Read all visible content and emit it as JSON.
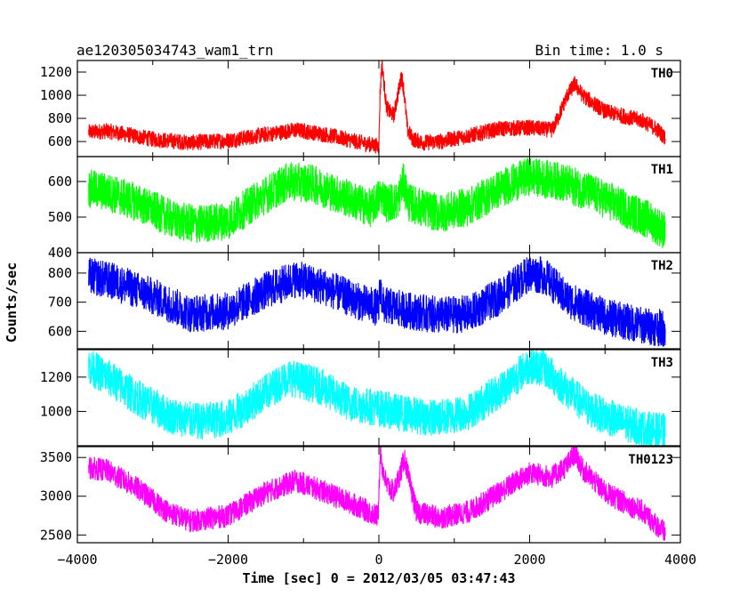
{
  "header": {
    "title": "ae120305034743_wam1_trn",
    "bin_time": "Bin time: 1.0 s"
  },
  "chart_data": {
    "type": "line",
    "xlabel": "Time [sec] 0 = 2012/03/05 03:47:43",
    "ylabel": "Counts/sec",
    "xlim": [
      -4000,
      4000
    ],
    "x_ticks": [
      -4000,
      -2000,
      0,
      2000,
      4000
    ],
    "x_tick_labels": [
      "−4000",
      "−2000",
      "0",
      "2000",
      "4000"
    ],
    "x_data_range": [
      -3850,
      3800
    ],
    "panels": [
      {
        "name": "TH0",
        "color": "#ff0000",
        "ylim": [
          470,
          1300
        ],
        "yticks": [
          600,
          800,
          1000,
          1200
        ],
        "noise": 70,
        "x": [
          -3850,
          -3600,
          -3000,
          -2500,
          -2000,
          -1500,
          -1100,
          -700,
          -300,
          0,
          15,
          40,
          60,
          100,
          150,
          200,
          250,
          300,
          330,
          380,
          450,
          600,
          800,
          1200,
          1600,
          2000,
          2300,
          2400,
          2500,
          2600,
          2700,
          3000,
          3500,
          3700,
          3800
        ],
        "y": [
          680,
          690,
          620,
          590,
          610,
          660,
          700,
          660,
          600,
          560,
          1000,
          1290,
          1150,
          900,
          850,
          830,
          1000,
          1170,
          1050,
          700,
          620,
          590,
          600,
          650,
          710,
          720,
          700,
          840,
          1000,
          1100,
          1000,
          860,
          780,
          700,
          630
        ]
      },
      {
        "name": "TH1",
        "color": "#00ff00",
        "ylim": [
          400,
          670
        ],
        "yticks": [
          400,
          500,
          600
        ],
        "noise": 55,
        "x": [
          -3850,
          -3600,
          -3200,
          -2700,
          -2400,
          -2000,
          -1600,
          -1200,
          -900,
          -500,
          -100,
          0,
          50,
          100,
          250,
          320,
          400,
          800,
          1200,
          1600,
          2000,
          2400,
          2800,
          3200,
          3600,
          3800
        ],
        "y": [
          580,
          570,
          540,
          490,
          480,
          490,
          550,
          600,
          595,
          560,
          525,
          555,
          560,
          540,
          545,
          600,
          540,
          510,
          530,
          580,
          615,
          600,
          570,
          530,
          490,
          460
        ]
      },
      {
        "name": "TH2",
        "color": "#0000ff",
        "ylim": [
          540,
          870
        ],
        "yticks": [
          600,
          700,
          800
        ],
        "noise": 65,
        "x": [
          -3850,
          -3500,
          -3000,
          -2500,
          -2000,
          -1500,
          -1100,
          -700,
          -300,
          0,
          15,
          50,
          400,
          800,
          1200,
          1600,
          2000,
          2200,
          2500,
          3000,
          3500,
          3800
        ],
        "y": [
          790,
          770,
          720,
          660,
          670,
          740,
          780,
          750,
          705,
          680,
          760,
          690,
          670,
          655,
          660,
          720,
          800,
          790,
          710,
          650,
          620,
          610
        ]
      },
      {
        "name": "TH3",
        "color": "#00ffff",
        "ylim": [
          800,
          1360
        ],
        "yticks": [
          1000,
          1200
        ],
        "noise": 110,
        "x": [
          -3850,
          -3600,
          -3200,
          -2800,
          -2400,
          -2000,
          -1600,
          -1200,
          -800,
          -400,
          0,
          400,
          800,
          1200,
          1600,
          2000,
          2200,
          2500,
          2800,
          3200,
          3600,
          3800
        ],
        "y": [
          1260,
          1200,
          1080,
          980,
          940,
          960,
          1080,
          1200,
          1150,
          1050,
          1020,
          980,
          960,
          1000,
          1120,
          1270,
          1250,
          1120,
          1010,
          940,
          890,
          880
        ]
      },
      {
        "name": "TH0123",
        "color": "#ff00ff",
        "ylim": [
          2400,
          3640
        ],
        "yticks": [
          2500,
          3000,
          3500
        ],
        "noise": 150,
        "x": [
          -3850,
          -3600,
          -3200,
          -2800,
          -2500,
          -2000,
          -1500,
          -1100,
          -700,
          -300,
          -10,
          0,
          20,
          40,
          100,
          200,
          300,
          340,
          400,
          500,
          800,
          1200,
          1600,
          2000,
          2300,
          2500,
          2600,
          2700,
          3000,
          3500,
          3800
        ],
        "y": [
          3370,
          3330,
          3100,
          2800,
          2680,
          2750,
          3050,
          3200,
          3050,
          2880,
          2740,
          3100,
          3620,
          3400,
          3150,
          3050,
          3350,
          3500,
          3200,
          2800,
          2720,
          2800,
          3050,
          3300,
          3250,
          3400,
          3560,
          3350,
          3050,
          2800,
          2520
        ]
      }
    ]
  }
}
